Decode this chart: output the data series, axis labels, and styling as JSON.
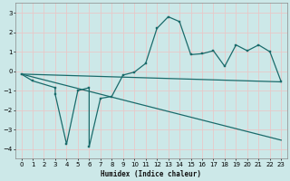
{
  "xlabel": "Humidex (Indice chaleur)",
  "bg_color": "#cce8e8",
  "grid_color": "#e8c8c8",
  "line_color": "#1a6b6b",
  "xlim": [
    -0.5,
    23.5
  ],
  "ylim": [
    -4.5,
    3.5
  ],
  "xticks": [
    0,
    1,
    2,
    3,
    4,
    5,
    6,
    7,
    8,
    9,
    10,
    11,
    12,
    13,
    14,
    15,
    16,
    17,
    18,
    19,
    20,
    21,
    22,
    23
  ],
  "yticks": [
    -4,
    -3,
    -2,
    -1,
    0,
    1,
    2,
    3
  ],
  "curve_main": {
    "x": [
      0,
      1,
      3,
      3,
      4,
      5,
      6,
      6,
      7,
      8,
      9,
      10,
      11,
      12,
      13,
      14,
      15,
      16,
      17,
      18,
      19,
      20,
      21,
      22,
      23
    ],
    "y": [
      -0.15,
      -0.5,
      -0.85,
      -1.2,
      -3.75,
      -1.0,
      -0.85,
      -3.9,
      -1.4,
      -1.3,
      -0.2,
      -0.05,
      0.4,
      2.2,
      2.8,
      2.55,
      0.85,
      0.9,
      1.05,
      0.25,
      1.35,
      1.05,
      1.35,
      1.0,
      -0.55
    ]
  },
  "line_upper": {
    "x": [
      0,
      23
    ],
    "y": [
      -0.15,
      -0.55
    ]
  },
  "line_lower": {
    "x": [
      0,
      23
    ],
    "y": [
      -0.15,
      -3.55
    ]
  }
}
